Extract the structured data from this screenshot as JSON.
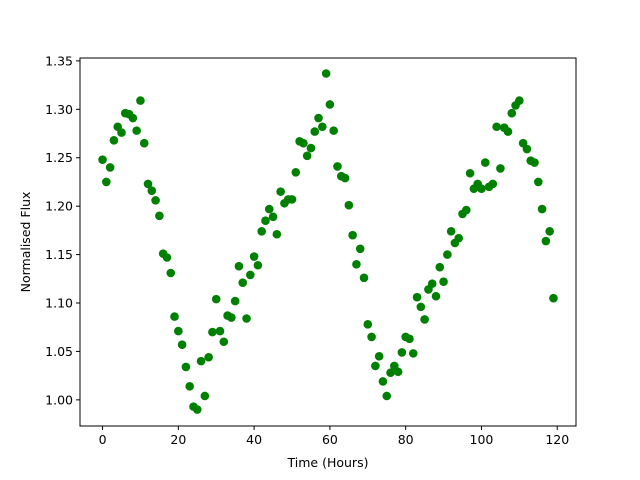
{
  "chart_data": {
    "type": "scatter",
    "xlabel": "Time (Hours)",
    "ylabel": "Normalised Flux",
    "color": "#008000",
    "x": [
      0,
      1,
      2,
      3,
      4,
      5,
      6,
      7,
      8,
      9,
      10,
      11,
      12,
      13,
      14,
      15,
      16,
      17,
      18,
      19,
      20,
      21,
      22,
      23,
      24,
      25,
      26,
      27,
      28,
      29,
      30,
      31,
      32,
      33,
      34,
      35,
      36,
      37,
      38,
      39,
      40,
      41,
      42,
      43,
      44,
      45,
      46,
      47,
      48,
      49,
      50,
      51,
      52,
      53,
      54,
      55,
      56,
      57,
      58,
      59,
      60,
      61,
      62,
      63,
      64,
      65,
      66,
      67,
      68,
      69,
      70,
      71,
      72,
      73,
      74,
      75,
      76,
      77,
      78,
      79,
      80,
      81,
      82,
      83,
      84,
      85,
      86,
      87,
      88,
      89,
      90,
      91,
      92,
      93,
      94,
      95,
      96,
      97,
      98,
      99,
      100,
      101,
      102,
      103,
      104,
      105,
      106,
      107,
      108,
      109,
      110,
      111,
      112,
      113,
      114,
      115,
      116,
      117,
      118,
      119
    ],
    "values": [
      1.248,
      1.225,
      1.24,
      1.268,
      1.282,
      1.276,
      1.296,
      1.295,
      1.291,
      1.278,
      1.309,
      1.265,
      1.223,
      1.216,
      1.206,
      1.19,
      1.151,
      1.147,
      1.131,
      1.086,
      1.071,
      1.057,
      1.034,
      1.014,
      0.993,
      0.99,
      1.04,
      1.004,
      1.044,
      1.07,
      1.104,
      1.071,
      1.06,
      1.087,
      1.085,
      1.102,
      1.138,
      1.121,
      1.084,
      1.129,
      1.148,
      1.139,
      1.174,
      1.185,
      1.197,
      1.189,
      1.171,
      1.215,
      1.203,
      1.207,
      1.207,
      1.235,
      1.267,
      1.265,
      1.252,
      1.26,
      1.277,
      1.291,
      1.282,
      1.337,
      1.305,
      1.278,
      1.241,
      1.231,
      1.229,
      1.201,
      1.17,
      1.14,
      1.156,
      1.126,
      1.078,
      1.065,
      1.035,
      1.045,
      1.019,
      1.004,
      1.028,
      1.035,
      1.029,
      1.049,
      1.065,
      1.063,
      1.048,
      1.106,
      1.096,
      1.083,
      1.114,
      1.12,
      1.107,
      1.137,
      1.122,
      1.15,
      1.174,
      1.162,
      1.167,
      1.192,
      1.196,
      1.234,
      1.218,
      1.223,
      1.218,
      1.245,
      1.22,
      1.223,
      1.282,
      1.239,
      1.281,
      1.277,
      1.296,
      1.304,
      1.309,
      1.265,
      1.259,
      1.247,
      1.245,
      1.225,
      1.197,
      1.164,
      1.174,
      1.105
    ],
    "xlim": [
      -5.95,
      124.95
    ],
    "xticks": [
      0,
      20,
      40,
      60,
      80,
      100,
      120
    ],
    "ylim": [
      0.973,
      1.353
    ],
    "yticks": [
      {
        "value": 1.0,
        "label": "1.00"
      },
      1.05,
      {
        "value": 1.1,
        "label": "1.10"
      },
      1.15,
      {
        "value": 1.2,
        "label": "1.20"
      },
      1.25,
      {
        "value": 1.3,
        "label": "1.30"
      },
      1.35
    ]
  }
}
